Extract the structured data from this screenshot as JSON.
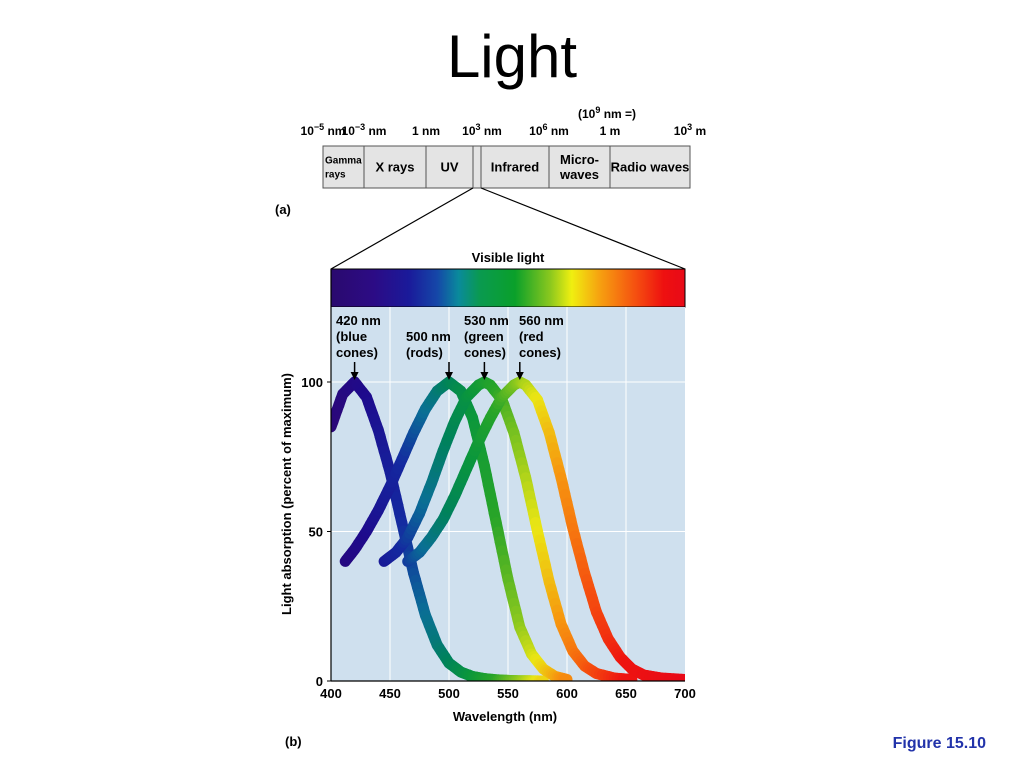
{
  "slide": {
    "title": "Light",
    "caption": "Figure 15.10"
  },
  "spectrum": {
    "panel_label": "(a)",
    "scale_note": "(10",
    "scale_note_exp": "9",
    "scale_note_tail": " nm =)",
    "ticks": [
      {
        "base": "10",
        "exp": "−5",
        "unit": " nm"
      },
      {
        "base": "10",
        "exp": "−3",
        "unit": " nm"
      },
      {
        "base": "1 nm",
        "exp": "",
        "unit": ""
      },
      {
        "base": "10",
        "exp": "3",
        "unit": " nm"
      },
      {
        "base": "10",
        "exp": "6",
        "unit": " nm"
      },
      {
        "base": "1 m",
        "exp": "",
        "unit": ""
      },
      {
        "base": "10",
        "exp": "3",
        "unit": " m"
      }
    ],
    "bands": [
      {
        "lines": [
          "Gamma",
          "rays"
        ]
      },
      {
        "lines": [
          "X rays"
        ]
      },
      {
        "lines": [
          "UV"
        ]
      },
      {
        "lines": [
          ""
        ]
      },
      {
        "lines": [
          "Infrared"
        ]
      },
      {
        "lines": [
          "Micro-",
          "waves"
        ]
      },
      {
        "lines": [
          "Radio waves"
        ]
      }
    ]
  },
  "chart_data": {
    "type": "line",
    "panel_label": "(b)",
    "band_title": "Visible light",
    "xlabel": "Wavelength (nm)",
    "ylabel": "Light absorption (percent of maximum)",
    "xlim": [
      400,
      700
    ],
    "ylim": [
      0,
      130
    ],
    "x_ticks": [
      400,
      450,
      500,
      550,
      600,
      650,
      700
    ],
    "y_ticks": [
      0,
      50,
      100
    ],
    "grid": true,
    "colors": {
      "plot_bg": "#cfe0ee",
      "grid": "#ffffff",
      "axis": "#000000"
    },
    "series": [
      {
        "annotation": [
          "420 nm",
          "(blue",
          "cones)"
        ],
        "peak": 420,
        "x": [
          400,
          410,
          420,
          430,
          440,
          450,
          460,
          470,
          480,
          490,
          500,
          510,
          520,
          530,
          540,
          550,
          560,
          570,
          580
        ],
        "values": [
          85,
          96,
          100,
          95,
          84,
          70,
          53,
          36,
          22,
          12,
          6,
          3,
          1.5,
          0.8,
          0.4,
          0.2,
          0.1,
          0.05,
          0
        ]
      },
      {
        "annotation": [
          "500 nm",
          "(rods)"
        ],
        "peak": 500,
        "x": [
          412,
          420,
          430,
          440,
          450,
          460,
          470,
          480,
          490,
          500,
          510,
          520,
          530,
          540,
          550,
          560,
          570,
          580,
          590,
          600
        ],
        "values": [
          40,
          44,
          50,
          57,
          65,
          74,
          83,
          91,
          97,
          100,
          97,
          88,
          72,
          53,
          34,
          18,
          9,
          4,
          1.5,
          0.5
        ]
      },
      {
        "annotation": [
          "530 nm",
          "(green",
          "cones)"
        ],
        "peak": 530,
        "x": [
          445,
          455,
          465,
          475,
          485,
          495,
          505,
          515,
          525,
          530,
          535,
          545,
          555,
          565,
          575,
          585,
          595,
          605,
          615,
          625,
          640,
          655
        ],
        "values": [
          40,
          43,
          48,
          56,
          66,
          77,
          87,
          95,
          99,
          100,
          99,
          94,
          83,
          68,
          50,
          33,
          19,
          10,
          5,
          2.5,
          1,
          0.5
        ]
      },
      {
        "annotation": [
          "560 nm",
          "(red",
          "cones)"
        ],
        "peak": 560,
        "x": [
          465,
          475,
          485,
          495,
          505,
          515,
          525,
          535,
          545,
          555,
          560,
          565,
          575,
          585,
          595,
          605,
          615,
          625,
          635,
          645,
          655,
          665,
          680,
          700
        ],
        "values": [
          40,
          43,
          48,
          54,
          62,
          71,
          80,
          88,
          95,
          99,
          100,
          99,
          94,
          83,
          68,
          51,
          36,
          23,
          14,
          8,
          4,
          2,
          1,
          0.5
        ]
      }
    ]
  }
}
